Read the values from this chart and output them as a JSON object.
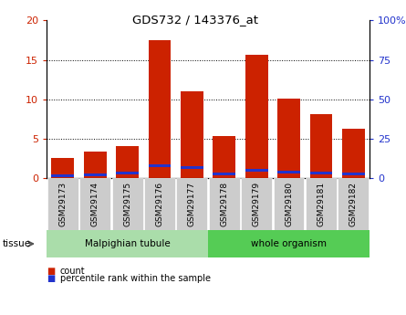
{
  "title": "GDS732 / 143376_at",
  "samples": [
    "GSM29173",
    "GSM29174",
    "GSM29175",
    "GSM29176",
    "GSM29177",
    "GSM29178",
    "GSM29179",
    "GSM29180",
    "GSM29181",
    "GSM29182"
  ],
  "count_values": [
    2.6,
    3.4,
    4.0,
    17.5,
    11.0,
    5.3,
    15.6,
    10.1,
    8.1,
    6.3
  ],
  "percentile_values": [
    1.5,
    2.0,
    3.2,
    7.8,
    6.6,
    2.5,
    5.0,
    3.8,
    3.4,
    2.7
  ],
  "ylim_left": [
    0,
    20
  ],
  "ylim_right": [
    0,
    100
  ],
  "yticks_left": [
    0,
    5,
    10,
    15,
    20
  ],
  "yticks_right": [
    0,
    25,
    50,
    75,
    100
  ],
  "ytick_labels_right": [
    "0",
    "25",
    "50",
    "75",
    "100%"
  ],
  "color_red": "#cc2200",
  "color_blue": "#2233cc",
  "color_bg_plot": "#ffffff",
  "color_tickbox": "#cccccc",
  "color_group1_bg": "#aaddaa",
  "color_group2_bg": "#55cc55",
  "group1_label": "Malpighian tubule",
  "group2_label": "whole organism",
  "legend_count": "count",
  "legend_percentile": "percentile rank within the sample",
  "tissue_label": "tissue",
  "bar_width": 0.7
}
